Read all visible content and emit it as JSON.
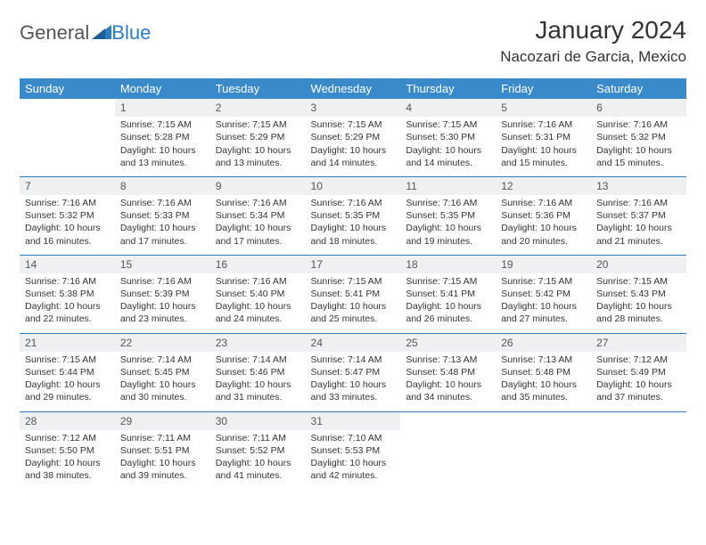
{
  "brand": {
    "part1": "General",
    "part2": "Blue"
  },
  "title": "January 2024",
  "location": "Nacozari de Garcia, Mexico",
  "colors": {
    "header_bg": "#3a8ac9",
    "accent": "#2d7bc0",
    "daynum_bg": "#eef0f2",
    "page_bg": "#ffffff",
    "text": "#333333"
  },
  "weekdays": [
    "Sunday",
    "Monday",
    "Tuesday",
    "Wednesday",
    "Thursday",
    "Friday",
    "Saturday"
  ],
  "first_weekday_index": 1,
  "days": [
    {
      "n": 1,
      "sunrise": "7:15 AM",
      "sunset": "5:28 PM",
      "daylight": "10 hours and 13 minutes."
    },
    {
      "n": 2,
      "sunrise": "7:15 AM",
      "sunset": "5:29 PM",
      "daylight": "10 hours and 13 minutes."
    },
    {
      "n": 3,
      "sunrise": "7:15 AM",
      "sunset": "5:29 PM",
      "daylight": "10 hours and 14 minutes."
    },
    {
      "n": 4,
      "sunrise": "7:15 AM",
      "sunset": "5:30 PM",
      "daylight": "10 hours and 14 minutes."
    },
    {
      "n": 5,
      "sunrise": "7:16 AM",
      "sunset": "5:31 PM",
      "daylight": "10 hours and 15 minutes."
    },
    {
      "n": 6,
      "sunrise": "7:16 AM",
      "sunset": "5:32 PM",
      "daylight": "10 hours and 15 minutes."
    },
    {
      "n": 7,
      "sunrise": "7:16 AM",
      "sunset": "5:32 PM",
      "daylight": "10 hours and 16 minutes."
    },
    {
      "n": 8,
      "sunrise": "7:16 AM",
      "sunset": "5:33 PM",
      "daylight": "10 hours and 17 minutes."
    },
    {
      "n": 9,
      "sunrise": "7:16 AM",
      "sunset": "5:34 PM",
      "daylight": "10 hours and 17 minutes."
    },
    {
      "n": 10,
      "sunrise": "7:16 AM",
      "sunset": "5:35 PM",
      "daylight": "10 hours and 18 minutes."
    },
    {
      "n": 11,
      "sunrise": "7:16 AM",
      "sunset": "5:35 PM",
      "daylight": "10 hours and 19 minutes."
    },
    {
      "n": 12,
      "sunrise": "7:16 AM",
      "sunset": "5:36 PM",
      "daylight": "10 hours and 20 minutes."
    },
    {
      "n": 13,
      "sunrise": "7:16 AM",
      "sunset": "5:37 PM",
      "daylight": "10 hours and 21 minutes."
    },
    {
      "n": 14,
      "sunrise": "7:16 AM",
      "sunset": "5:38 PM",
      "daylight": "10 hours and 22 minutes."
    },
    {
      "n": 15,
      "sunrise": "7:16 AM",
      "sunset": "5:39 PM",
      "daylight": "10 hours and 23 minutes."
    },
    {
      "n": 16,
      "sunrise": "7:16 AM",
      "sunset": "5:40 PM",
      "daylight": "10 hours and 24 minutes."
    },
    {
      "n": 17,
      "sunrise": "7:15 AM",
      "sunset": "5:41 PM",
      "daylight": "10 hours and 25 minutes."
    },
    {
      "n": 18,
      "sunrise": "7:15 AM",
      "sunset": "5:41 PM",
      "daylight": "10 hours and 26 minutes."
    },
    {
      "n": 19,
      "sunrise": "7:15 AM",
      "sunset": "5:42 PM",
      "daylight": "10 hours and 27 minutes."
    },
    {
      "n": 20,
      "sunrise": "7:15 AM",
      "sunset": "5:43 PM",
      "daylight": "10 hours and 28 minutes."
    },
    {
      "n": 21,
      "sunrise": "7:15 AM",
      "sunset": "5:44 PM",
      "daylight": "10 hours and 29 minutes."
    },
    {
      "n": 22,
      "sunrise": "7:14 AM",
      "sunset": "5:45 PM",
      "daylight": "10 hours and 30 minutes."
    },
    {
      "n": 23,
      "sunrise": "7:14 AM",
      "sunset": "5:46 PM",
      "daylight": "10 hours and 31 minutes."
    },
    {
      "n": 24,
      "sunrise": "7:14 AM",
      "sunset": "5:47 PM",
      "daylight": "10 hours and 33 minutes."
    },
    {
      "n": 25,
      "sunrise": "7:13 AM",
      "sunset": "5:48 PM",
      "daylight": "10 hours and 34 minutes."
    },
    {
      "n": 26,
      "sunrise": "7:13 AM",
      "sunset": "5:48 PM",
      "daylight": "10 hours and 35 minutes."
    },
    {
      "n": 27,
      "sunrise": "7:12 AM",
      "sunset": "5:49 PM",
      "daylight": "10 hours and 37 minutes."
    },
    {
      "n": 28,
      "sunrise": "7:12 AM",
      "sunset": "5:50 PM",
      "daylight": "10 hours and 38 minutes."
    },
    {
      "n": 29,
      "sunrise": "7:11 AM",
      "sunset": "5:51 PM",
      "daylight": "10 hours and 39 minutes."
    },
    {
      "n": 30,
      "sunrise": "7:11 AM",
      "sunset": "5:52 PM",
      "daylight": "10 hours and 41 minutes."
    },
    {
      "n": 31,
      "sunrise": "7:10 AM",
      "sunset": "5:53 PM",
      "daylight": "10 hours and 42 minutes."
    }
  ],
  "labels": {
    "sunrise": "Sunrise:",
    "sunset": "Sunset:",
    "daylight": "Daylight:"
  }
}
